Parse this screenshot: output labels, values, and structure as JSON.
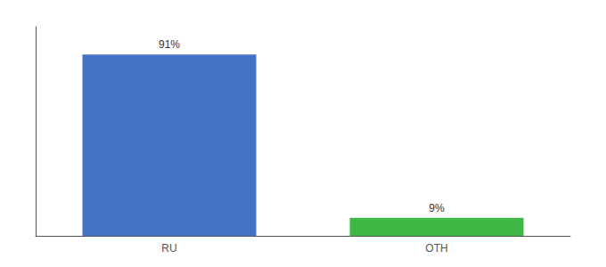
{
  "chart_data": {
    "type": "bar",
    "categories": [
      "RU",
      "OTH"
    ],
    "values": [
      91,
      9
    ],
    "value_labels": [
      "91%",
      "9%"
    ],
    "colors": [
      "#4472c4",
      "#3cb843"
    ],
    "ylim": [
      0,
      105
    ],
    "data_labels": true,
    "tick_labels": "x",
    "grid": false
  }
}
